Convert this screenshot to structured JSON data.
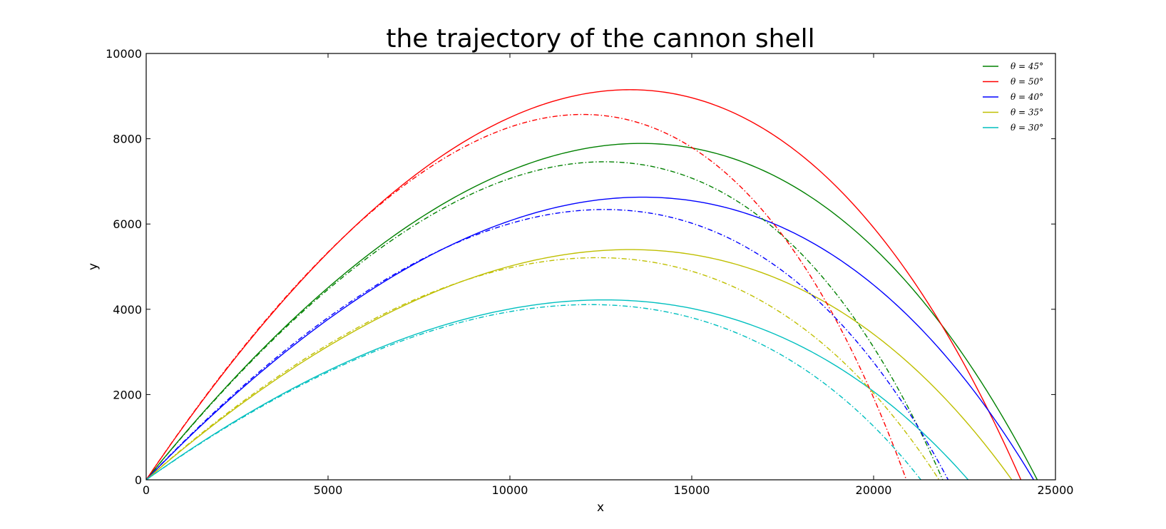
{
  "chart_data": {
    "type": "line",
    "title": "the trajectory of the cannon shell",
    "xlabel": "x",
    "ylabel": "y",
    "xlim": [
      0,
      25000
    ],
    "ylim": [
      0,
      10000
    ],
    "xticks": [
      0,
      5000,
      10000,
      15000,
      20000,
      25000
    ],
    "yticks": [
      0,
      2000,
      4000,
      6000,
      8000,
      10000
    ],
    "grid": false,
    "legend_position": "top-right",
    "series": [
      {
        "name": "θ = 45°",
        "color": "#008000",
        "style": "solid",
        "range": 24500,
        "peak_x": 13600,
        "peak_y": 7890
      },
      {
        "name": "θ = 50°",
        "color": "#ff0000",
        "style": "solid",
        "range": 24050,
        "peak_x": 13300,
        "peak_y": 9150
      },
      {
        "name": "θ = 40°",
        "color": "#0000ff",
        "style": "solid",
        "range": 24400,
        "peak_x": 13650,
        "peak_y": 6630
      },
      {
        "name": "θ = 35°",
        "color": "#bfbf00",
        "style": "solid",
        "range": 23800,
        "peak_x": 13300,
        "peak_y": 5400
      },
      {
        "name": "θ = 30°",
        "color": "#00bfbf",
        "style": "solid",
        "range": 22600,
        "peak_x": 12600,
        "peak_y": 4220
      },
      {
        "color": "#008000",
        "style": "dashdot",
        "range": 21900,
        "peak_x": 12600,
        "peak_y": 7460
      },
      {
        "color": "#ff0000",
        "style": "dashdot",
        "range": 20900,
        "peak_x": 12000,
        "peak_y": 8570
      },
      {
        "color": "#0000ff",
        "style": "dashdot",
        "range": 22050,
        "peak_x": 12600,
        "peak_y": 6340
      },
      {
        "color": "#bfbf00",
        "style": "dashdot",
        "range": 21800,
        "peak_x": 12400,
        "peak_y": 5210
      },
      {
        "color": "#00bfbf",
        "style": "dashdot",
        "range": 21300,
        "peak_x": 12200,
        "peak_y": 4110
      }
    ]
  }
}
